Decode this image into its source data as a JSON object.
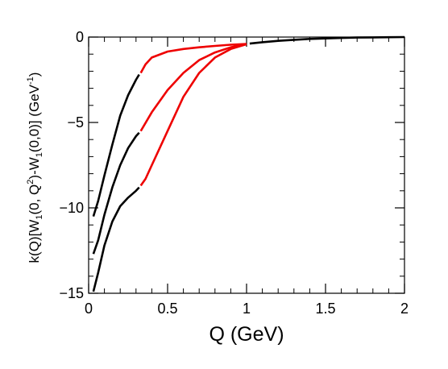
{
  "chart_data": {
    "type": "line",
    "title": "",
    "xlabel": "Q (GeV)",
    "ylabel_parts": {
      "a": "k(Q)[W",
      "b": "1",
      "c": "(0, Q",
      "d": "2",
      "e": ")-W",
      "f": "1",
      "g": "(0,0)] (GeV",
      "h": "-1",
      "i": ")"
    },
    "xlim": [
      0,
      2
    ],
    "ylim": [
      -15,
      0
    ],
    "x_ticks": [
      {
        "value": 0,
        "label": "0"
      },
      {
        "value": 0.5,
        "label": "0.5"
      },
      {
        "value": 1,
        "label": "1"
      },
      {
        "value": 1.5,
        "label": "1.5"
      },
      {
        "value": 2,
        "label": "2"
      }
    ],
    "y_ticks": [
      {
        "value": 0,
        "label": "0"
      },
      {
        "value": -5,
        "label": "−5"
      },
      {
        "value": -10,
        "label": "−10"
      },
      {
        "value": -15,
        "label": "−15"
      }
    ],
    "x_minor_step": 0.1,
    "y_minor_step": 1,
    "grid": false,
    "colors": {
      "black": "#000000",
      "red": "#ee0000"
    },
    "series": [
      {
        "color": "#000000",
        "points": [
          [
            0.03,
            -10.5
          ],
          [
            0.06,
            -9.6
          ],
          [
            0.1,
            -8.1
          ],
          [
            0.15,
            -6.3
          ],
          [
            0.2,
            -4.6
          ],
          [
            0.25,
            -3.4
          ],
          [
            0.3,
            -2.5
          ],
          [
            0.32,
            -2.2
          ]
        ]
      },
      {
        "color": "#000000",
        "points": [
          [
            0.03,
            -12.7
          ],
          [
            0.06,
            -11.9
          ],
          [
            0.1,
            -10.4
          ],
          [
            0.15,
            -8.8
          ],
          [
            0.2,
            -7.5
          ],
          [
            0.25,
            -6.5
          ],
          [
            0.3,
            -5.8
          ],
          [
            0.32,
            -5.6
          ]
        ]
      },
      {
        "color": "#000000",
        "points": [
          [
            0.03,
            -14.9
          ],
          [
            0.06,
            -13.8
          ],
          [
            0.1,
            -12.2
          ],
          [
            0.15,
            -10.8
          ],
          [
            0.2,
            -9.9
          ],
          [
            0.25,
            -9.4
          ],
          [
            0.3,
            -9.0
          ],
          [
            0.32,
            -8.8
          ]
        ]
      },
      {
        "color": "#ee0000",
        "points": [
          [
            0.33,
            -2.1
          ],
          [
            0.36,
            -1.6
          ],
          [
            0.4,
            -1.2
          ],
          [
            0.5,
            -0.85
          ],
          [
            0.6,
            -0.7
          ],
          [
            0.7,
            -0.6
          ],
          [
            0.8,
            -0.52
          ],
          [
            0.9,
            -0.45
          ],
          [
            1.0,
            -0.4
          ]
        ]
      },
      {
        "color": "#ee0000",
        "points": [
          [
            0.33,
            -5.5
          ],
          [
            0.4,
            -4.4
          ],
          [
            0.5,
            -3.1
          ],
          [
            0.6,
            -2.1
          ],
          [
            0.7,
            -1.35
          ],
          [
            0.8,
            -0.9
          ],
          [
            0.9,
            -0.6
          ],
          [
            1.0,
            -0.42
          ]
        ]
      },
      {
        "color": "#ee0000",
        "points": [
          [
            0.33,
            -8.7
          ],
          [
            0.36,
            -8.3
          ],
          [
            0.4,
            -7.5
          ],
          [
            0.5,
            -5.5
          ],
          [
            0.6,
            -3.5
          ],
          [
            0.7,
            -2.1
          ],
          [
            0.8,
            -1.2
          ],
          [
            0.9,
            -0.7
          ],
          [
            1.0,
            -0.42
          ]
        ]
      },
      {
        "color": "#000000",
        "points": [
          [
            1.02,
            -0.38
          ],
          [
            1.1,
            -0.3
          ],
          [
            1.2,
            -0.22
          ],
          [
            1.3,
            -0.16
          ],
          [
            1.4,
            -0.11
          ],
          [
            1.5,
            -0.08
          ],
          [
            1.6,
            -0.05
          ],
          [
            1.7,
            -0.03
          ],
          [
            1.8,
            -0.02
          ],
          [
            1.9,
            -0.01
          ],
          [
            2.0,
            0
          ]
        ]
      }
    ]
  }
}
